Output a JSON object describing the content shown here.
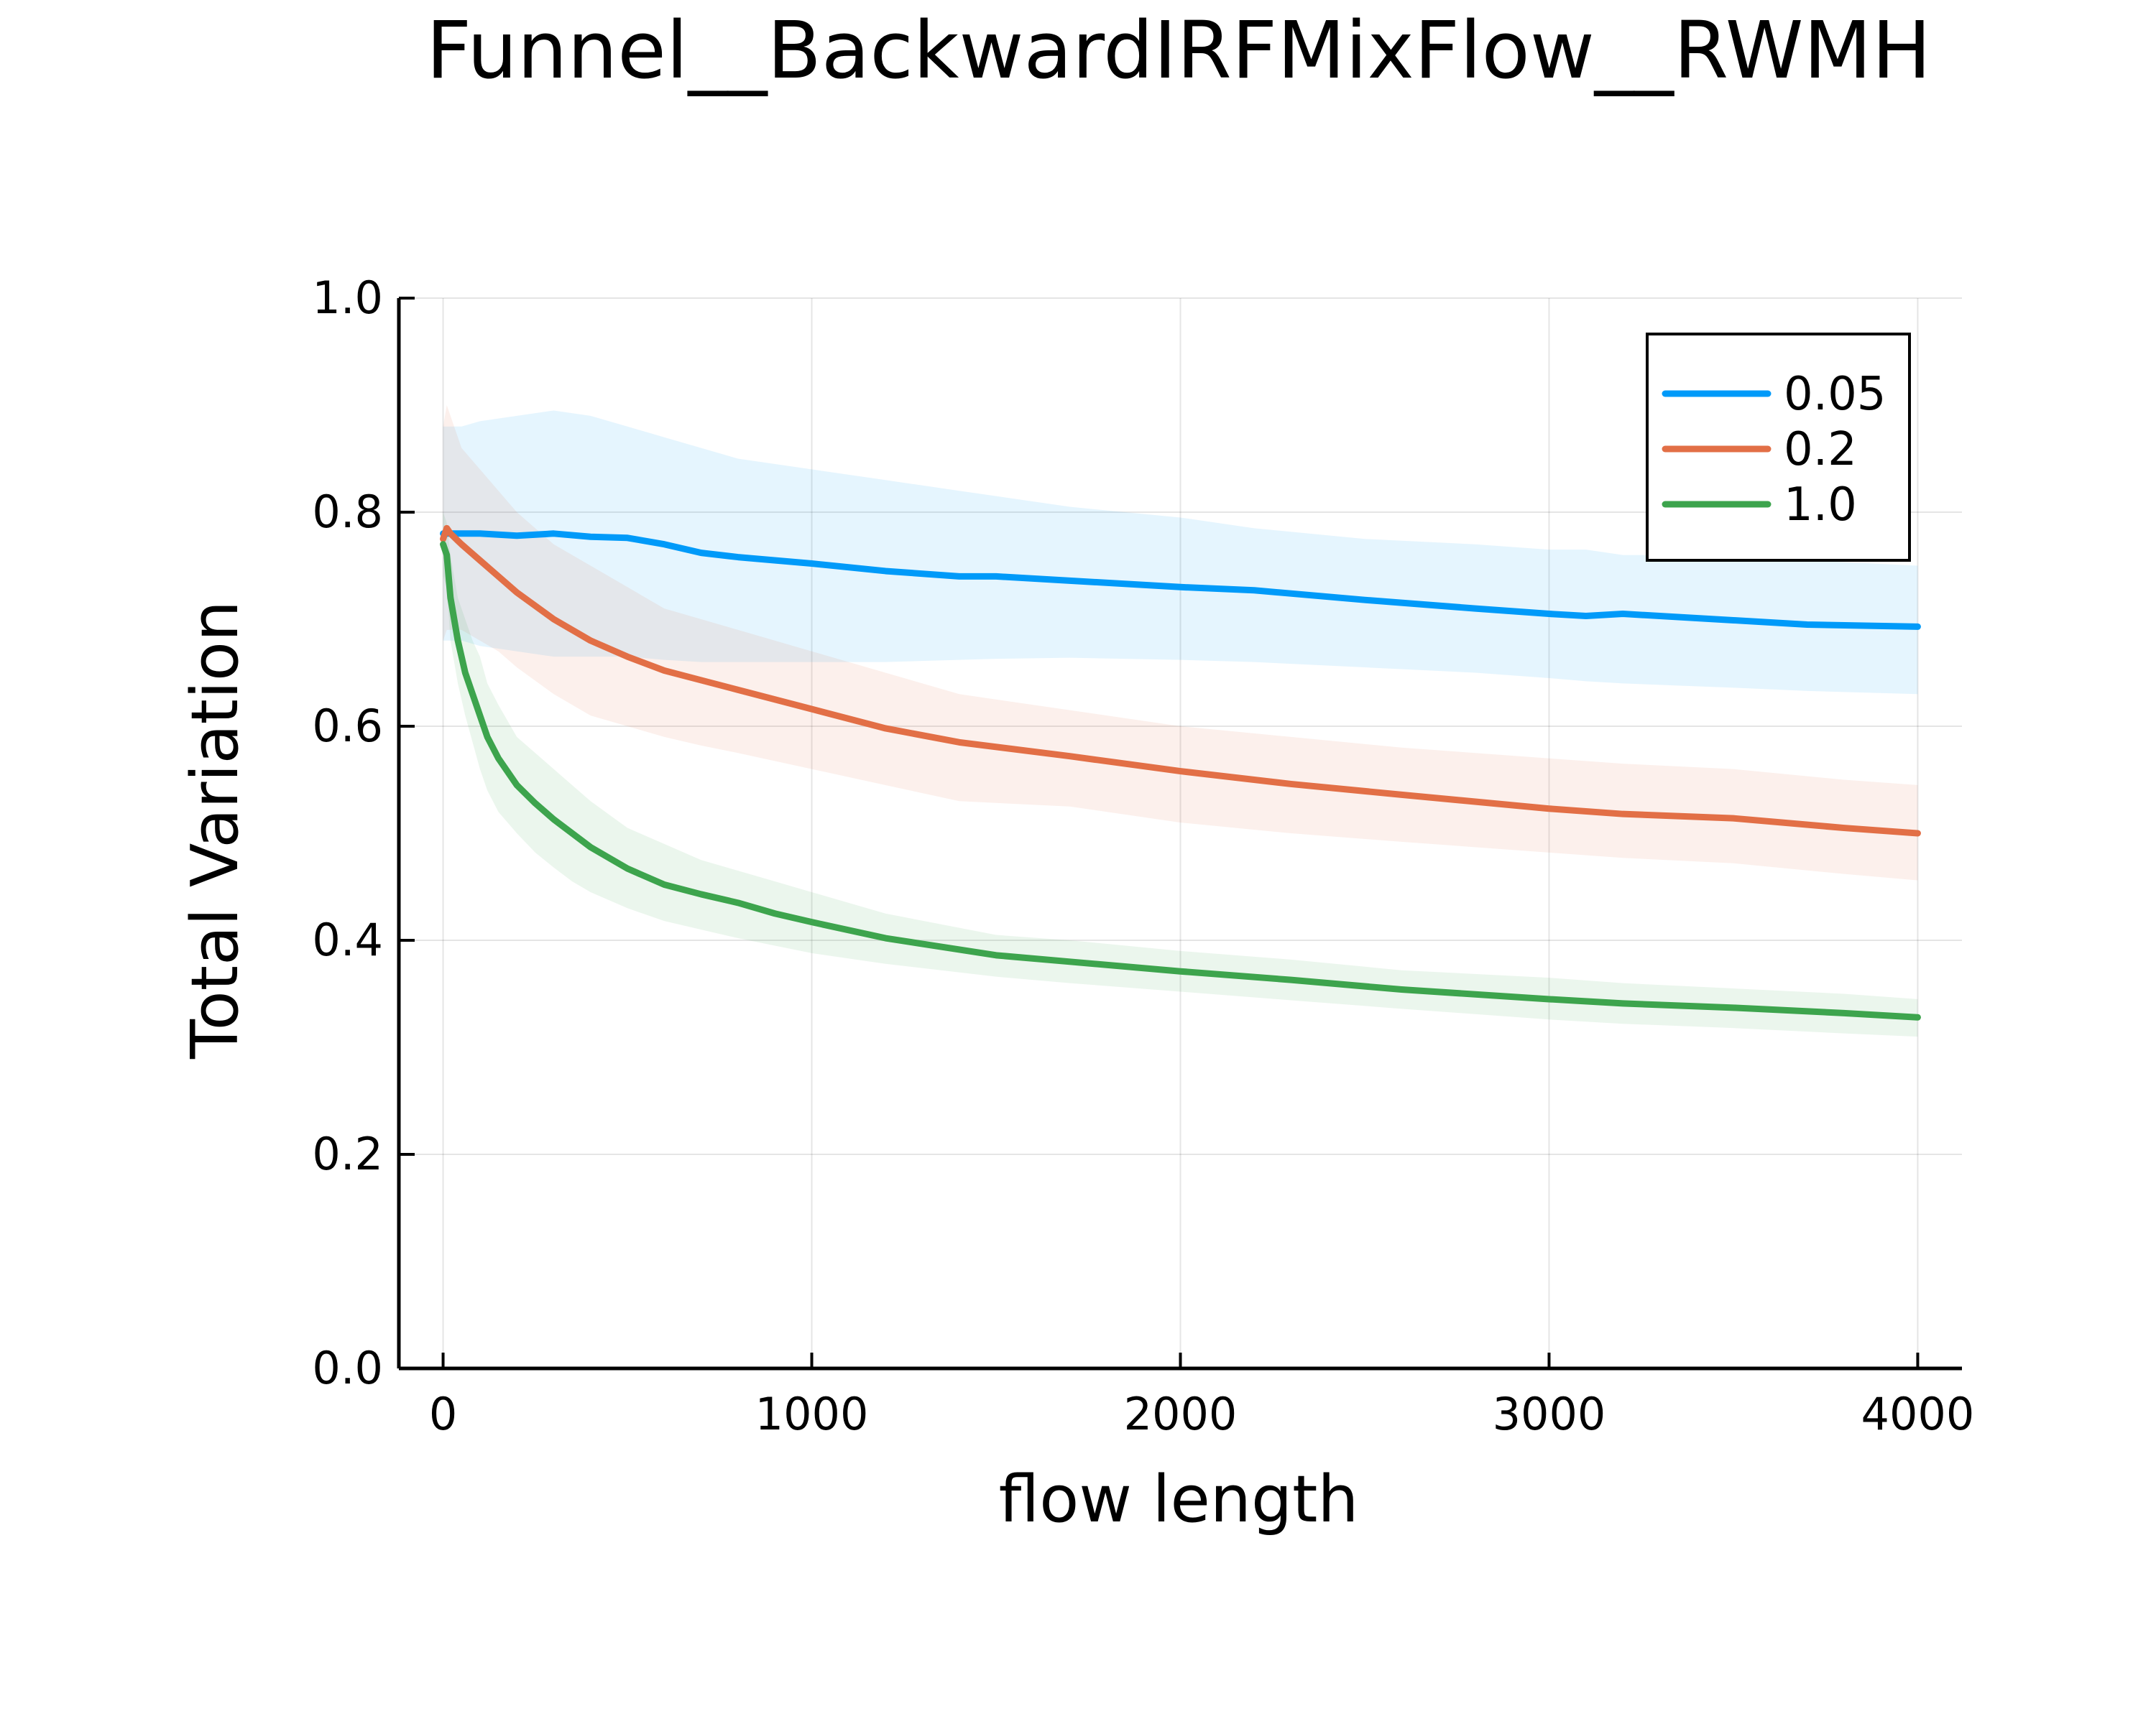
{
  "chart_data": {
    "type": "line",
    "title": "Funnel__BackwardIRFMixFlow__RWMH",
    "xlabel": "flow length",
    "ylabel": "Total Variation",
    "xlim": [
      -120,
      4120
    ],
    "ylim": [
      0.0,
      1.0
    ],
    "xticks": [
      0,
      1000,
      2000,
      3000,
      4000
    ],
    "xtick_labels": [
      "0",
      "1000",
      "2000",
      "3000",
      "4000"
    ],
    "yticks": [
      0.0,
      0.2,
      0.4,
      0.6,
      0.8,
      1.0
    ],
    "ytick_labels": [
      "0.0",
      "0.2",
      "0.4",
      "0.6",
      "0.8",
      "1.0"
    ],
    "grid": true,
    "legend_position": "top-right",
    "series": [
      {
        "name": "0.05",
        "color": "#009af9",
        "x": [
          0,
          50,
          100,
          200,
          300,
          400,
          500,
          600,
          700,
          800,
          1000,
          1200,
          1400,
          1500,
          1700,
          2000,
          2200,
          2500,
          2800,
          3000,
          3100,
          3200,
          3500,
          3700,
          4000
        ],
        "y": [
          0.78,
          0.78,
          0.78,
          0.778,
          0.78,
          0.777,
          0.776,
          0.77,
          0.762,
          0.758,
          0.752,
          0.745,
          0.74,
          0.74,
          0.736,
          0.73,
          0.727,
          0.718,
          0.71,
          0.705,
          0.703,
          0.705,
          0.699,
          0.695,
          0.693
        ],
        "upper": [
          0.88,
          0.88,
          0.885,
          0.89,
          0.895,
          0.89,
          0.88,
          0.87,
          0.86,
          0.85,
          0.84,
          0.83,
          0.82,
          0.815,
          0.805,
          0.795,
          0.785,
          0.775,
          0.77,
          0.765,
          0.765,
          0.76,
          0.76,
          0.755,
          0.75
        ],
        "lower": [
          0.68,
          0.68,
          0.675,
          0.67,
          0.665,
          0.665,
          0.665,
          0.662,
          0.66,
          0.66,
          0.66,
          0.66,
          0.662,
          0.663,
          0.664,
          0.662,
          0.66,
          0.655,
          0.65,
          0.645,
          0.642,
          0.64,
          0.636,
          0.633,
          0.63
        ]
      },
      {
        "name": "0.2",
        "color": "#e26f46",
        "x": [
          0,
          10,
          20,
          50,
          100,
          150,
          200,
          300,
          400,
          500,
          600,
          700,
          800,
          1000,
          1200,
          1400,
          1700,
          2000,
          2300,
          2600,
          3000,
          3200,
          3500,
          3800,
          4000
        ],
        "y": [
          0.775,
          0.785,
          0.78,
          0.77,
          0.755,
          0.74,
          0.725,
          0.7,
          0.68,
          0.665,
          0.652,
          0.643,
          0.634,
          0.616,
          0.598,
          0.585,
          0.572,
          0.558,
          0.546,
          0.536,
          0.523,
          0.518,
          0.514,
          0.505,
          0.5
        ],
        "upper": [
          0.88,
          0.9,
          0.89,
          0.86,
          0.84,
          0.82,
          0.8,
          0.77,
          0.75,
          0.73,
          0.71,
          0.7,
          0.69,
          0.67,
          0.65,
          0.63,
          0.615,
          0.6,
          0.59,
          0.58,
          0.57,
          0.565,
          0.56,
          0.55,
          0.545
        ],
        "lower": [
          0.68,
          0.69,
          0.69,
          0.69,
          0.68,
          0.67,
          0.655,
          0.63,
          0.61,
          0.6,
          0.59,
          0.582,
          0.575,
          0.56,
          0.545,
          0.53,
          0.525,
          0.51,
          0.5,
          0.492,
          0.482,
          0.477,
          0.472,
          0.462,
          0.456
        ]
      },
      {
        "name": "1.0",
        "color": "#3da44d",
        "x": [
          0,
          10,
          20,
          40,
          60,
          80,
          100,
          120,
          150,
          200,
          250,
          300,
          350,
          400,
          500,
          600,
          700,
          800,
          900,
          1000,
          1200,
          1500,
          1700,
          2000,
          2300,
          2600,
          3000,
          3200,
          3500,
          3800,
          4000
        ],
        "y": [
          0.77,
          0.76,
          0.72,
          0.68,
          0.65,
          0.63,
          0.61,
          0.59,
          0.57,
          0.545,
          0.528,
          0.513,
          0.5,
          0.487,
          0.467,
          0.452,
          0.443,
          0.435,
          0.425,
          0.417,
          0.402,
          0.386,
          0.38,
          0.371,
          0.363,
          0.354,
          0.345,
          0.341,
          0.337,
          0.332,
          0.328
        ],
        "upper": [
          0.8,
          0.79,
          0.76,
          0.72,
          0.7,
          0.68,
          0.665,
          0.64,
          0.62,
          0.59,
          0.575,
          0.56,
          0.545,
          0.53,
          0.505,
          0.49,
          0.475,
          0.465,
          0.455,
          0.445,
          0.425,
          0.405,
          0.4,
          0.39,
          0.382,
          0.372,
          0.365,
          0.36,
          0.355,
          0.35,
          0.345
        ],
        "lower": [
          0.74,
          0.73,
          0.68,
          0.64,
          0.61,
          0.585,
          0.56,
          0.54,
          0.52,
          0.5,
          0.482,
          0.468,
          0.455,
          0.445,
          0.43,
          0.418,
          0.41,
          0.402,
          0.395,
          0.388,
          0.378,
          0.366,
          0.36,
          0.352,
          0.344,
          0.336,
          0.326,
          0.322,
          0.318,
          0.313,
          0.31
        ]
      }
    ]
  }
}
